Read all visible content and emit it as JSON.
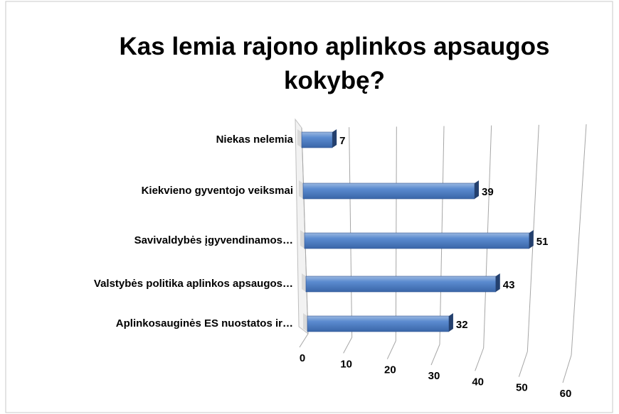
{
  "chart_data": {
    "type": "bar3d",
    "orientation": "horizontal",
    "title": "Kas lemia rajono aplinkos apsaugos kokybę?",
    "categories": [
      "Niekas nelemia",
      "Kiekvieno gyventojo veiksmai",
      "Savivaldybės įgyvendinamos…",
      "Valstybės politika aplinkos apsaugos…",
      "Aplinkosauginės ES nuostatos ir…"
    ],
    "values": [
      7,
      39,
      51,
      43,
      32
    ],
    "color": "#4f81bd",
    "xlim": [
      0,
      60
    ],
    "xticks": [
      0,
      10,
      20,
      30,
      40,
      50,
      60
    ],
    "grid": true
  }
}
